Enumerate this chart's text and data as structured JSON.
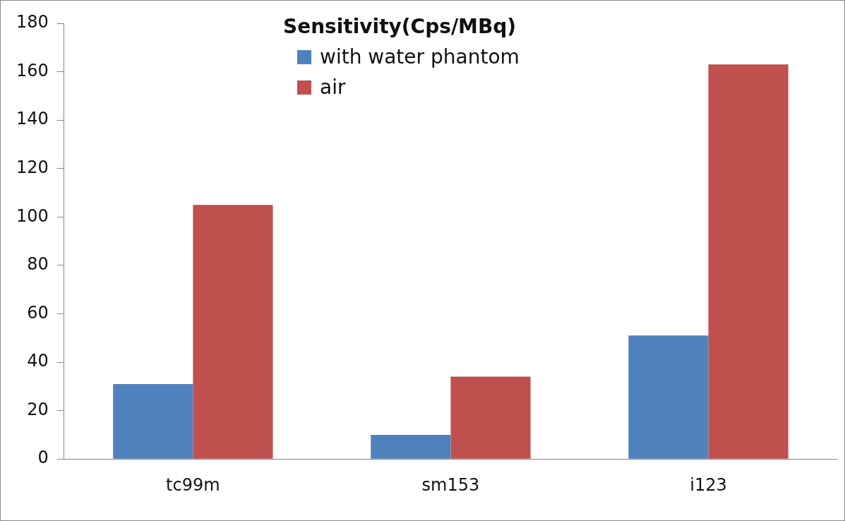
{
  "chart_data": {
    "type": "bar",
    "legend_title": "Sensitivity(Cps/MBq)",
    "categories": [
      "tc99m",
      "sm153",
      "i123"
    ],
    "series": [
      {
        "name": "with water phantom",
        "color": "#4f81bd",
        "values": [
          31,
          10,
          51
        ]
      },
      {
        "name": "air",
        "color": "#c0504d",
        "values": [
          105,
          34,
          163
        ]
      }
    ],
    "ylim": [
      0,
      180
    ],
    "yticks": [
      0,
      20,
      40,
      60,
      80,
      100,
      120,
      140,
      160,
      180
    ],
    "grid": false,
    "legend": "top"
  }
}
